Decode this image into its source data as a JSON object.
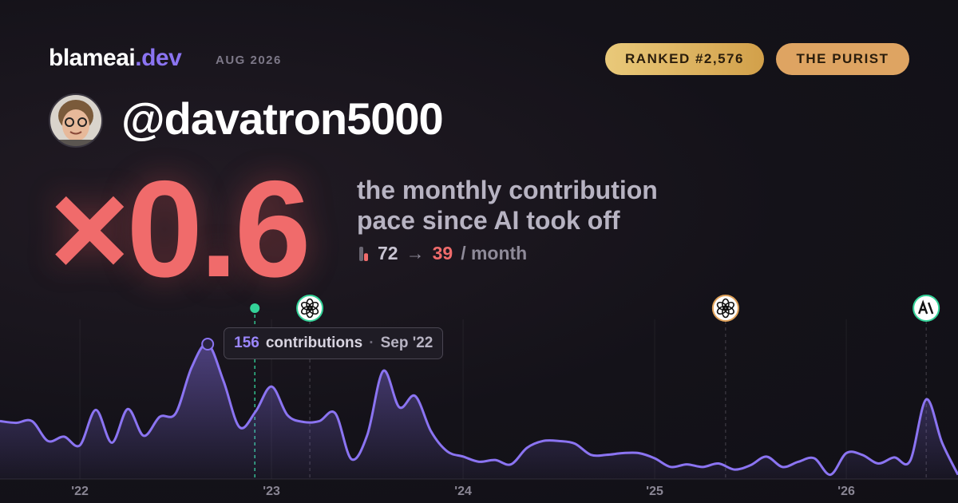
{
  "brand": {
    "name": "blameai",
    "tld": ".dev",
    "period": "AUG 2026"
  },
  "badges": [
    "RANKED #2,576",
    "THE PURIST"
  ],
  "user": {
    "handle": "@davatron5000"
  },
  "headline": {
    "multiplier": "×0.6",
    "caption_line1": "the monthly contribution",
    "caption_line2": "pace since AI took off"
  },
  "stats": {
    "before": 72,
    "arrow": "→",
    "after": 39,
    "unit": "/ month"
  },
  "chart_data": {
    "type": "line",
    "x": [
      2021.583,
      2021.667,
      2021.75,
      2021.833,
      2021.917,
      2022,
      2022.083,
      2022.167,
      2022.25,
      2022.333,
      2022.417,
      2022.5,
      2022.583,
      2022.667,
      2022.75,
      2022.833,
      2022.917,
      2023,
      2023.083,
      2023.167,
      2023.25,
      2023.333,
      2023.417,
      2023.5,
      2023.583,
      2023.667,
      2023.75,
      2023.833,
      2023.917,
      2024,
      2024.083,
      2024.167,
      2024.25,
      2024.333,
      2024.417,
      2024.5,
      2024.583,
      2024.667,
      2024.75,
      2024.833,
      2024.917,
      2025,
      2025.083,
      2025.167,
      2025.25,
      2025.333,
      2025.417,
      2025.5,
      2025.583,
      2025.667,
      2025.75,
      2025.833,
      2025.917,
      2026,
      2026.083,
      2026.167,
      2026.25,
      2026.333,
      2026.417,
      2026.5,
      2026.583
    ],
    "series": [
      {
        "color": "#8b74f2",
        "values": [
          67,
          65,
          67,
          44,
          49,
          39,
          80,
          42,
          81,
          50,
          72,
          76,
          129,
          156,
          113,
          60,
          78,
          107,
          74,
          66,
          67,
          76,
          23,
          51,
          125,
          83,
          96,
          55,
          32,
          26,
          20,
          22,
          17,
          36,
          44,
          44,
          41,
          28,
          28,
          30,
          30,
          24,
          14,
          17,
          14,
          18,
          11,
          16,
          26,
          14,
          20,
          24,
          5,
          30,
          28,
          18,
          25,
          21,
          92,
          42,
          5
        ]
      }
    ],
    "xlim": [
      2021.583,
      2026.583
    ],
    "xticks": [
      {
        "value": 2022,
        "label": "'22"
      },
      {
        "value": 2023,
        "label": "'23"
      },
      {
        "value": 2024,
        "label": "'24"
      },
      {
        "value": 2025,
        "label": "'25"
      },
      {
        "value": 2026,
        "label": "'26"
      }
    ],
    "ylim": [
      0,
      180
    ],
    "grid": true,
    "markers": [
      {
        "x": 2022.913,
        "color": "#34d399"
      },
      {
        "x": 2023.2,
        "color": "#34d399"
      },
      {
        "x": 2025.37,
        "color": "#e0a25a"
      },
      {
        "x": 2026.417,
        "color": "#34d399"
      }
    ],
    "tooltip": {
      "x": 2022.667,
      "text": "contributions",
      "separator": "·",
      "date": "Sep '22"
    }
  }
}
